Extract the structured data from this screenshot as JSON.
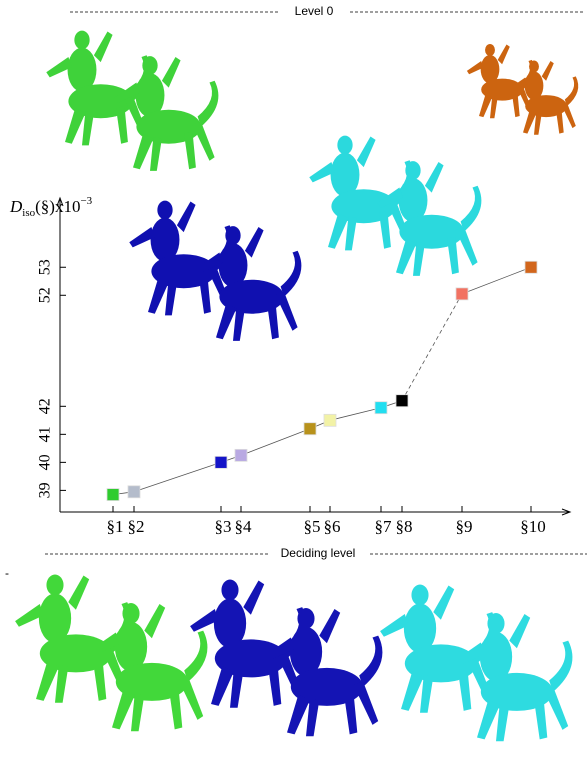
{
  "chart_data": {
    "type": "line",
    "header_top": "Level 0",
    "header_bottom": "Deciding level",
    "stray_mark": "-",
    "y_label": {
      "main": "D",
      "sub": "iso",
      "mid": "(§)x10",
      "sup": "−3"
    },
    "categories": [
      "§1",
      "§2",
      "§3",
      "§4",
      "§5",
      "§6",
      "§7",
      "§8",
      "§9",
      "§10"
    ],
    "values": [
      38.85,
      38.95,
      40.0,
      40.25,
      41.2,
      41.5,
      41.95,
      42.2,
      52.05,
      53.0
    ],
    "colors": [
      "#2fcc2f",
      "#b4bccb",
      "#1414c8",
      "#b9a9e2",
      "#b8921c",
      "#f2f2a6",
      "#22def0",
      "#000000",
      "#f27262",
      "#d2661c"
    ],
    "line_color": "#555555",
    "segment_styles": [
      "solid",
      "solid",
      "solid",
      "solid",
      "solid",
      "solid",
      "solid",
      "dashed",
      "solid"
    ],
    "ylim": [
      38.3,
      55.4
    ],
    "ybreak": [
      42.5,
      51.5
    ],
    "yticks": [
      39,
      40,
      41,
      42,
      52,
      53
    ]
  }
}
